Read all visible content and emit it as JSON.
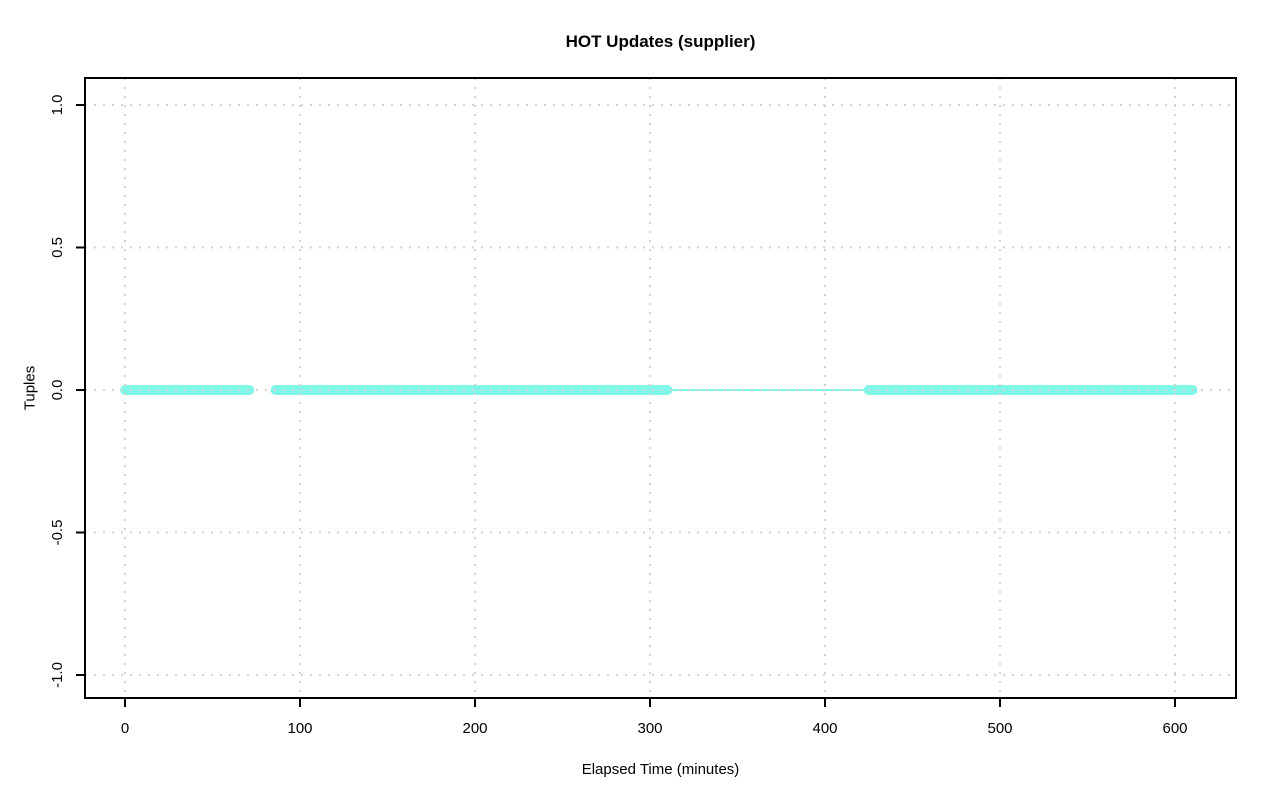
{
  "page": {
    "background": "#ffffff"
  },
  "chart_data": {
    "type": "line",
    "title": "HOT Updates (supplier)",
    "xlabel": "Elapsed Time (minutes)",
    "ylabel": "Tuples",
    "x_ticks": [
      0,
      100,
      200,
      300,
      400,
      500,
      600
    ],
    "x_tick_labels": [
      "0",
      "100",
      "200",
      "300",
      "400",
      "500",
      "600"
    ],
    "y_ticks": [
      -1.0,
      -0.5,
      0.0,
      0.5,
      1.0
    ],
    "y_tick_labels": [
      "-1.0",
      "-0.5",
      "0.0",
      "0.5",
      "1.0"
    ],
    "xlim": [
      -24,
      634
    ],
    "ylim": [
      -1.08,
      1.08
    ],
    "grid": true,
    "grid_style": "dotted",
    "legend_position": "none",
    "colors": {
      "grid": "#d3d3d3",
      "axis": "#000000",
      "background": "#ffffff"
    },
    "series": [
      {
        "name": "supplier HOT updates",
        "color": "#7ff7e7",
        "y_value": 0,
        "segments": [
          {
            "style": "points",
            "x_from": 0,
            "x_to": 71
          },
          {
            "style": "points",
            "x_from": 86,
            "x_to": 310
          },
          {
            "style": "line",
            "x_from": 310,
            "x_to": 425
          },
          {
            "style": "points",
            "x_from": 425,
            "x_to": 610
          }
        ]
      }
    ]
  }
}
